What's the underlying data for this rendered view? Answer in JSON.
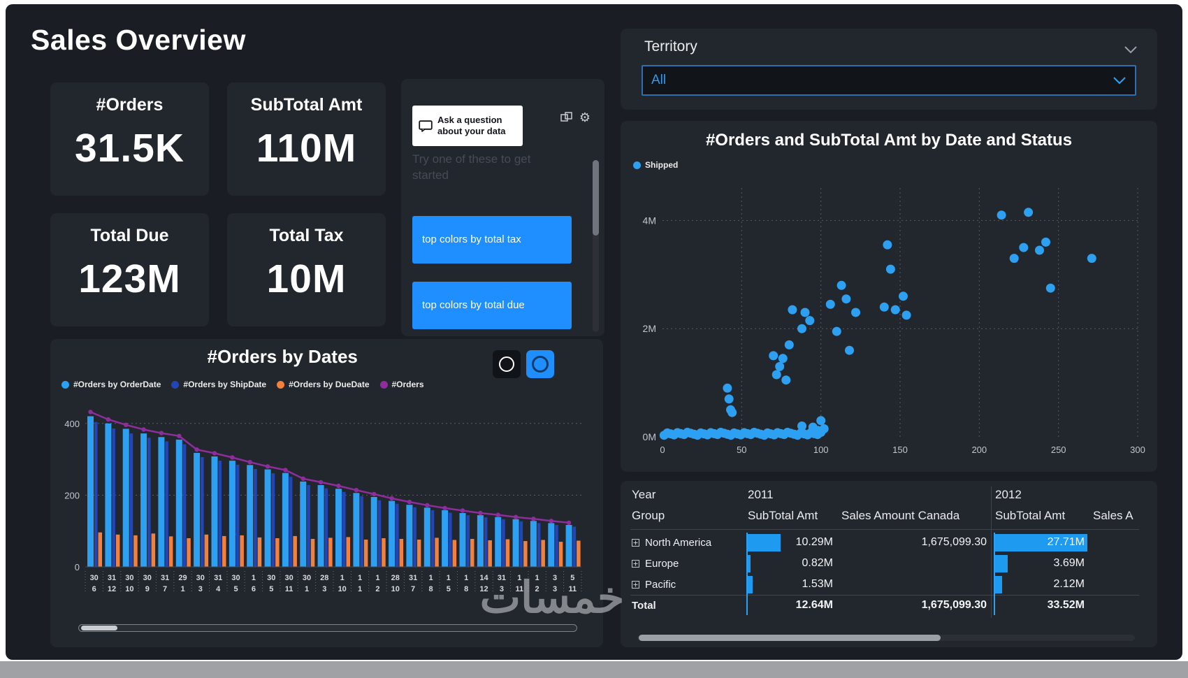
{
  "title": "Sales Overview",
  "watermark": "خمسات",
  "colors": {
    "accent_blue": "#1F8FFF",
    "point_blue": "#2DA0F2",
    "databar_blue": "#1E9BF0",
    "card_bg": "#22262D",
    "canvas_bg": "#1A1D23"
  },
  "kpis": [
    {
      "label": "#Orders",
      "value": "31.5K"
    },
    {
      "label": "SubTotal Amt",
      "value": "110M"
    },
    {
      "label": "Total Due",
      "value": "123M"
    },
    {
      "label": "Total Tax",
      "value": "10M"
    }
  ],
  "qna": {
    "prompt": "Ask a question about your data",
    "hint": "Try one of these to get started",
    "suggestions": [
      "top colors by total tax",
      "top colors by total due"
    ]
  },
  "slicer": {
    "label": "Territory",
    "value": "All"
  },
  "chart_data": [
    {
      "type": "scatter",
      "title": "#Orders and SubTotal Amt by Date and Status",
      "legend": [
        {
          "label": "Shipped",
          "color": "#2DA0F2"
        }
      ],
      "xlabel": "",
      "ylabel": "",
      "xlim": [
        0,
        300
      ],
      "ylim_m": [
        0,
        4.6
      ],
      "x_ticks": [
        0,
        50,
        100,
        150,
        200,
        250,
        300
      ],
      "y_ticks": [
        "0M",
        "2M",
        "4M"
      ],
      "points_x_y_millions": [
        [
          41,
          0.9
        ],
        [
          42,
          0.7
        ],
        [
          43,
          0.5
        ],
        [
          44,
          0.45
        ],
        [
          70,
          1.5
        ],
        [
          72,
          1.15
        ],
        [
          74,
          1.3
        ],
        [
          76,
          1.45
        ],
        [
          78,
          1.05
        ],
        [
          80,
          1.7
        ],
        [
          82,
          2.35
        ],
        [
          88,
          2.0
        ],
        [
          90,
          2.3
        ],
        [
          93,
          2.15
        ],
        [
          88,
          0.2
        ],
        [
          95,
          0.18
        ],
        [
          98,
          0.12
        ],
        [
          100,
          0.3
        ],
        [
          102,
          0.15
        ],
        [
          106,
          2.45
        ],
        [
          110,
          1.95
        ],
        [
          113,
          2.8
        ],
        [
          116,
          2.55
        ],
        [
          118,
          1.6
        ],
        [
          122,
          2.3
        ],
        [
          140,
          2.4
        ],
        [
          142,
          3.55
        ],
        [
          144,
          3.1
        ],
        [
          147,
          2.35
        ],
        [
          152,
          2.6
        ],
        [
          154,
          2.25
        ],
        [
          214,
          4.1
        ],
        [
          222,
          3.3
        ],
        [
          228,
          3.5
        ],
        [
          231,
          4.15
        ],
        [
          238,
          3.45
        ],
        [
          242,
          3.6
        ],
        [
          245,
          2.75
        ],
        [
          271,
          3.3
        ]
      ],
      "baseline_band": {
        "x_start": 1,
        "x_end": 100,
        "count": 48,
        "y_min": 0.03,
        "y_max": 0.09
      }
    },
    {
      "type": "bar-line-combo",
      "title": "#Orders by Dates",
      "legend": [
        {
          "label": "#Orders by OrderDate",
          "color": "#2DA0F2"
        },
        {
          "label": "#Orders by ShipDate",
          "color": "#2246B8"
        },
        {
          "label": "#Orders by DueDate",
          "color": "#F0813F"
        },
        {
          "label": "#Orders",
          "color": "#8E2D9C"
        }
      ],
      "ylim": [
        0,
        460
      ],
      "y_ticks": [
        0,
        200,
        400
      ],
      "categories_top": [
        "30",
        "31",
        "30",
        "30",
        "31",
        "29",
        "30",
        "31",
        "30",
        "1",
        "30",
        "30",
        "30",
        "28",
        "1",
        "1",
        "1",
        "28",
        "31",
        "1",
        "1",
        "1",
        "14",
        "31",
        "1",
        "1",
        "3",
        "5"
      ],
      "categories_bottom": [
        "6",
        "12",
        "10",
        "9",
        "7",
        "1",
        "3",
        "4",
        "5",
        "6",
        "5",
        "11",
        "1",
        "3",
        "10",
        "1",
        "2",
        "10",
        "7",
        "8",
        "5",
        "8",
        "12",
        "3",
        "11",
        "2",
        "3",
        "11"
      ],
      "series": [
        {
          "name": "#Orders by OrderDate",
          "type": "bar",
          "color": "#2DA0F2",
          "values": [
            420,
            400,
            385,
            372,
            362,
            355,
            318,
            308,
            296,
            284,
            272,
            262,
            238,
            228,
            218,
            206,
            195,
            184,
            173,
            165,
            158,
            150,
            144,
            139,
            133,
            128,
            122,
            117
          ]
        },
        {
          "name": "#Orders by ShipDate",
          "type": "bar",
          "color": "#2246B8",
          "values": [
            404,
            386,
            372,
            360,
            350,
            342,
            306,
            296,
            285,
            273,
            261,
            251,
            228,
            219,
            209,
            197,
            186,
            176,
            166,
            158,
            151,
            144,
            138,
            133,
            127,
            122,
            117,
            112
          ]
        },
        {
          "name": "#Orders by DueDate",
          "type": "bar",
          "color": "#F0813F",
          "values": [
            96,
            90,
            88,
            93,
            85,
            80,
            90,
            86,
            88,
            82,
            80,
            86,
            78,
            81,
            83,
            76,
            80,
            78,
            76,
            81,
            75,
            78,
            74,
            77,
            72,
            75,
            70,
            73
          ]
        },
        {
          "name": "#Orders",
          "type": "line",
          "color": "#8E2D9C",
          "values": [
            432,
            411,
            396,
            383,
            373,
            365,
            327,
            317,
            305,
            292,
            280,
            270,
            246,
            236,
            226,
            214,
            203,
            191,
            181,
            172,
            164,
            157,
            150,
            145,
            139,
            134,
            128,
            123
          ]
        }
      ]
    },
    {
      "type": "table",
      "corner_labels": {
        "row1": "Year",
        "row2": "Group"
      },
      "year_groups": [
        {
          "year": "2011",
          "columns": [
            "SubTotal Amt",
            "Sales Amount Canada"
          ]
        },
        {
          "year": "2012",
          "columns": [
            "SubTotal Amt",
            "Sales A"
          ]
        }
      ],
      "databar_columns": [
        0,
        2
      ],
      "rows": [
        {
          "group": "North America",
          "expandable": true,
          "is_total": false,
          "values": [
            "10.29M",
            "1,675,099.30",
            "27.71M",
            ""
          ]
        },
        {
          "group": "Europe",
          "expandable": true,
          "is_total": false,
          "values": [
            "0.82M",
            "",
            "3.69M",
            ""
          ]
        },
        {
          "group": "Pacific",
          "expandable": true,
          "is_total": false,
          "values": [
            "1.53M",
            "",
            "2.12M",
            ""
          ]
        },
        {
          "group": "Total",
          "expandable": false,
          "is_total": true,
          "values": [
            "12.64M",
            "1,675,099.30",
            "33.52M",
            ""
          ]
        }
      ]
    }
  ]
}
